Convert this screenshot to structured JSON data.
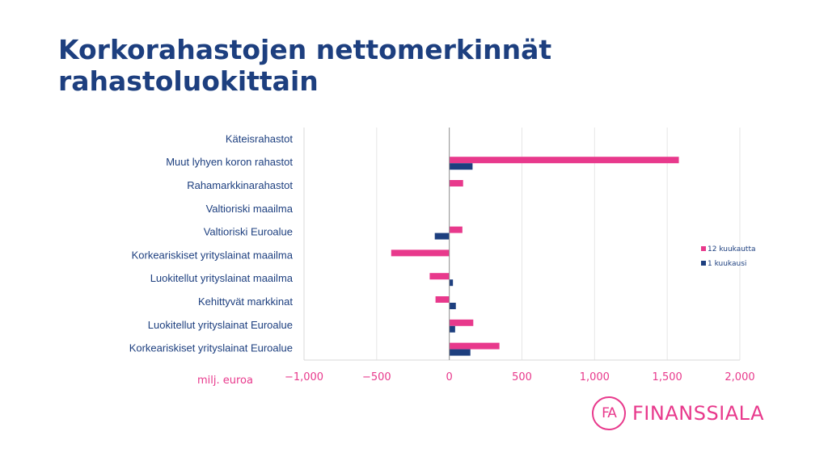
{
  "slide": {
    "title_line1": "Korkorahastojen nettomerkinnät",
    "title_line2": "rahastoluokittain"
  },
  "brand": {
    "logo_mark": "FA",
    "logo_text": "FINANSSIALA"
  },
  "colors": {
    "title": "#1d3f7f",
    "series_12m": "#e8398c",
    "series_1m": "#1d3f7f",
    "axis_labels": "#e8398c",
    "grid": "#e6e6e6"
  },
  "chart_data": {
    "type": "bar",
    "orientation": "horizontal",
    "title": "",
    "xlabel": "milj. euroa",
    "ylabel": "",
    "xlim": [
      -1000,
      2000
    ],
    "xticks": [
      -1000,
      -500,
      0,
      500,
      1000,
      1500,
      2000
    ],
    "xtick_labels": [
      "−1,000",
      "−500",
      "0",
      "500",
      "1,000",
      "1,500",
      "2,000"
    ],
    "grid": true,
    "legend_position": "right",
    "categories": [
      "Käteisrahastot",
      "Muut lyhyen koron rahastot",
      "Rahamarkkinarahastot",
      "Valtioriski maailma",
      "Valtioriski Euroalue",
      "Korkeariskiset yrityslainat maailma",
      "Luokitellut yrityslainat maailma",
      "Kehittyvät markkinat",
      "Luokitellut yrityslainat Euroalue",
      "Korkeariskiset yrityslainat Euroalue"
    ],
    "series": [
      {
        "name": "12 kuukautta",
        "values": [
          0,
          1580,
          95,
          0,
          90,
          -400,
          -135,
          -95,
          165,
          345
        ]
      },
      {
        "name": "1 kuukausi",
        "values": [
          0,
          160,
          2,
          0,
          -100,
          0,
          25,
          45,
          40,
          145
        ]
      }
    ]
  }
}
